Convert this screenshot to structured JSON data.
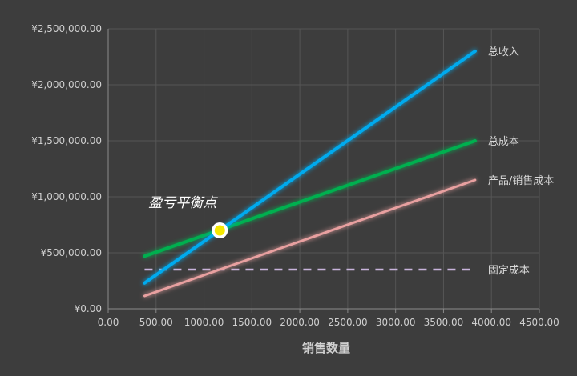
{
  "chart_data": {
    "type": "line",
    "xlabel": "销售数量",
    "ylabel": "",
    "xlim": [
      0,
      4500
    ],
    "ylim": [
      0,
      2500000
    ],
    "x_ticks": [
      "0.00",
      "500.00",
      "1000.00",
      "1500.00",
      "2000.00",
      "2500.00",
      "3000.00",
      "3500.00",
      "4000.00",
      "4500.00"
    ],
    "y_ticks": [
      "¥0.00",
      "¥500,000.00",
      "¥1,000,000.00",
      "¥1,500,000.00",
      "¥2,000,000.00",
      "¥2,500,000.00"
    ],
    "grid": true,
    "series": [
      {
        "name": "总收入",
        "x": [
          380,
          3830
        ],
        "y": [
          230000,
          2300000
        ],
        "color": "#00aaee",
        "dashed": false
      },
      {
        "name": "总成本",
        "x": [
          380,
          3830
        ],
        "y": [
          470000,
          1500000
        ],
        "color": "#00b050",
        "dashed": false
      },
      {
        "name": "产品/销售成本",
        "x": [
          380,
          3830
        ],
        "y": [
          115000,
          1150000
        ],
        "color": "#e8a0a0",
        "dashed": false
      },
      {
        "name": "固定成本",
        "x": [
          380,
          3830
        ],
        "y": [
          350000,
          350000
        ],
        "color": "#c8b4dc",
        "dashed": true
      }
    ],
    "annotations": [
      {
        "text": "盈亏平衡点",
        "x": 1165,
        "y": 700000
      }
    ]
  }
}
